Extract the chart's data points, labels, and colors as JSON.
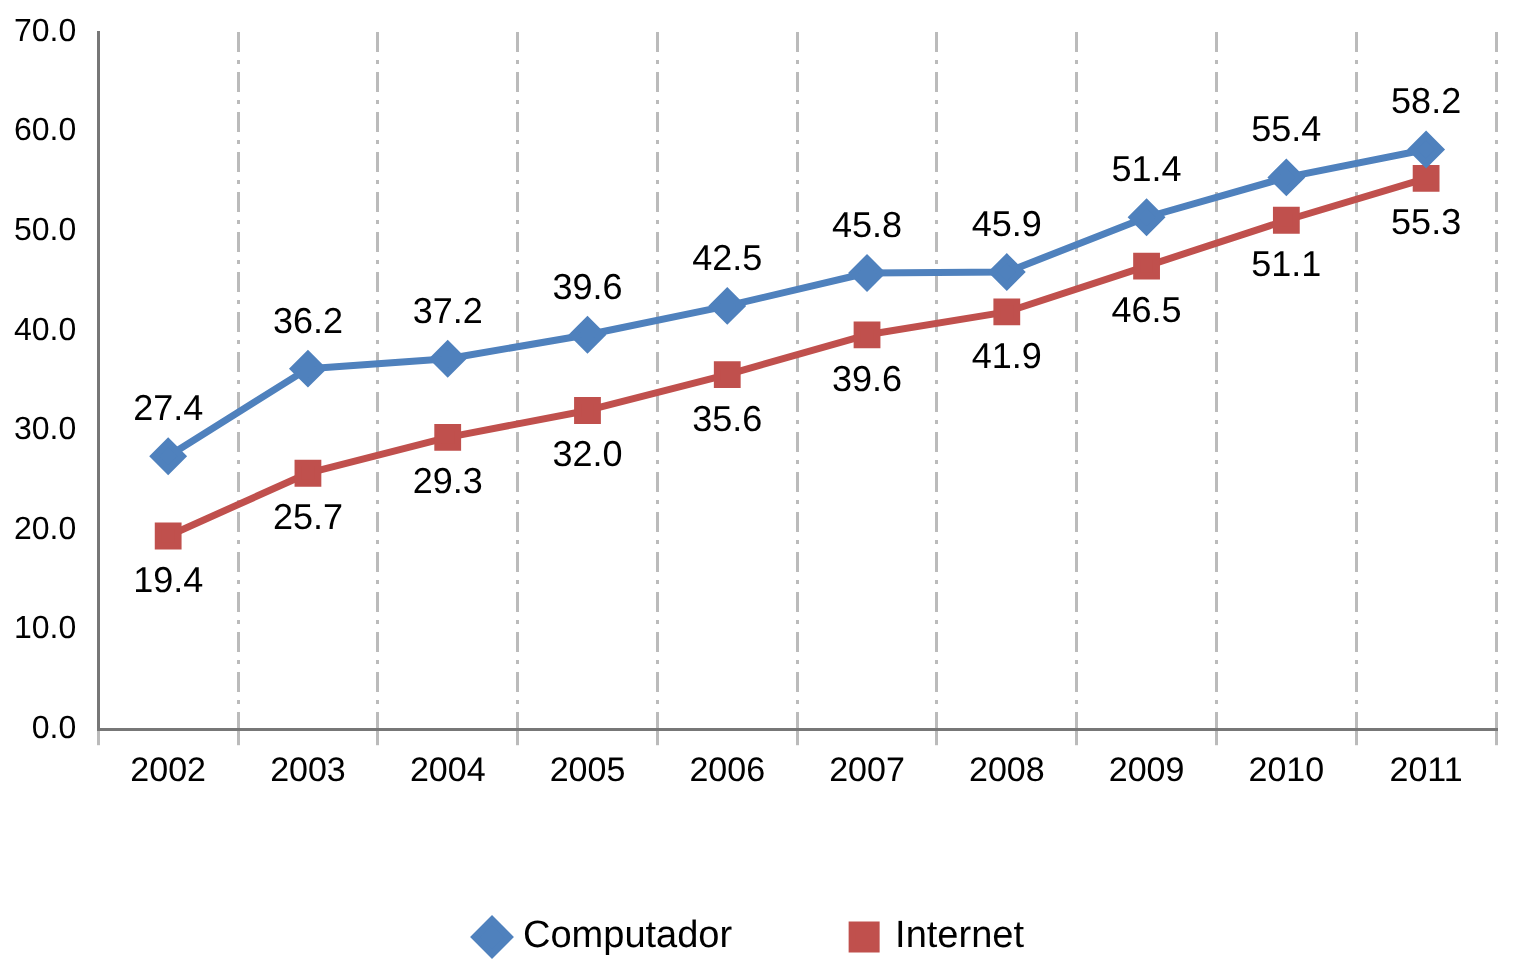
{
  "chart_data": {
    "type": "line",
    "categories": [
      "2002",
      "2003",
      "2004",
      "2005",
      "2006",
      "2007",
      "2008",
      "2009",
      "2010",
      "2011"
    ],
    "series": [
      {
        "name": "Computador",
        "color": "#4f81bd",
        "marker": "diamond",
        "values": [
          27.4,
          36.2,
          37.2,
          39.6,
          42.5,
          45.8,
          45.9,
          51.4,
          55.4,
          58.2
        ],
        "value_labels": [
          "27.4",
          "36.2",
          "37.2",
          "39.6",
          "42.5",
          "45.8",
          "45.9",
          "51.4",
          "55.4",
          "58.2"
        ]
      },
      {
        "name": "Internet",
        "color": "#c0504d",
        "marker": "square",
        "values": [
          19.4,
          25.7,
          29.3,
          32.0,
          35.6,
          39.6,
          41.9,
          46.5,
          51.1,
          55.3
        ],
        "value_labels": [
          "19.4",
          "25.7",
          "29.3",
          "32.0",
          "35.6",
          "39.6",
          "41.9",
          "46.5",
          "51.1",
          "55.3"
        ]
      }
    ],
    "ylim": [
      0,
      70
    ],
    "yticks": [
      {
        "value": 0,
        "label": "0.0"
      },
      {
        "value": 10,
        "label": "10.0"
      },
      {
        "value": 20,
        "label": "20.0"
      },
      {
        "value": 30,
        "label": "30.0"
      },
      {
        "value": 40,
        "label": "40.0"
      },
      {
        "value": 50,
        "label": "50.0"
      },
      {
        "value": 60,
        "label": "60.0"
      },
      {
        "value": 70,
        "label": "70.0"
      }
    ],
    "grid": "x",
    "legend": "bottom",
    "line_style": "solid"
  }
}
